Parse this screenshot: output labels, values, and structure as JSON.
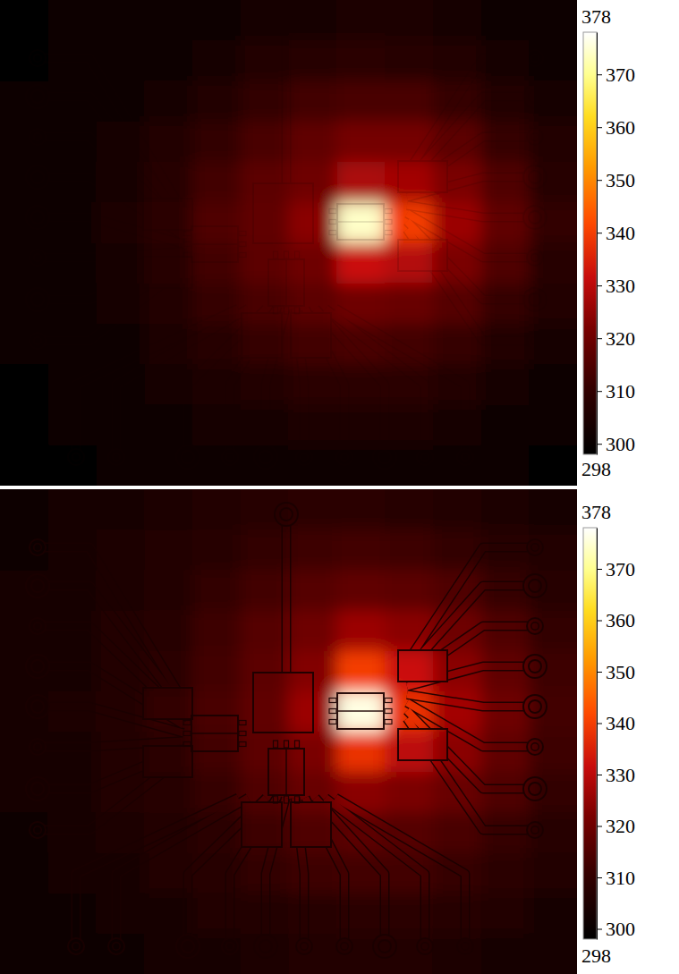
{
  "chart_data": [
    {
      "type": "heatmap",
      "tick_labels": false,
      "cells": [
        [
          299,
          300,
          300,
          301,
          302,
          303,
          304,
          305,
          305,
          304,
          302,
          301
        ],
        [
          299,
          300,
          301,
          302,
          304,
          306,
          308,
          309,
          308,
          306,
          304,
          302
        ],
        [
          300,
          301,
          302,
          304,
          307,
          310,
          313,
          314,
          314,
          311,
          307,
          304
        ],
        [
          300,
          301,
          303,
          306,
          310,
          314,
          318,
          321,
          321,
          317,
          311,
          306
        ],
        [
          300,
          302,
          304,
          308,
          313,
          317,
          320,
          328,
          327,
          322,
          315,
          308
        ],
        [
          300,
          302,
          305,
          309,
          315,
          318,
          324,
          374,
          340,
          326,
          318,
          310
        ],
        [
          300,
          302,
          304,
          308,
          313,
          317,
          320,
          332,
          329,
          322,
          315,
          308
        ],
        [
          300,
          301,
          303,
          306,
          311,
          314,
          317,
          320,
          319,
          316,
          311,
          306
        ],
        [
          300,
          301,
          302,
          305,
          308,
          311,
          313,
          314,
          313,
          311,
          307,
          304
        ],
        [
          299,
          300,
          301,
          303,
          305,
          307,
          309,
          309,
          309,
          307,
          304,
          302
        ],
        [
          299,
          300,
          300,
          301,
          303,
          304,
          305,
          305,
          305,
          304,
          302,
          300
        ],
        [
          299,
          299,
          300,
          300,
          301,
          302,
          302,
          302,
          302,
          301,
          300,
          299
        ]
      ],
      "colorbar": {
        "range": [
          298,
          378
        ],
        "ticks": [
          300,
          310,
          320,
          330,
          340,
          350,
          360,
          370
        ]
      }
    },
    {
      "type": "heatmap",
      "tick_labels": false,
      "cells": [
        [
          302,
          303,
          304,
          305,
          306,
          308,
          309,
          309,
          308,
          307,
          305,
          304
        ],
        [
          302,
          303,
          305,
          306,
          308,
          310,
          312,
          313,
          312,
          310,
          308,
          306
        ],
        [
          303,
          304,
          305,
          307,
          310,
          313,
          316,
          318,
          317,
          315,
          311,
          308
        ],
        [
          303,
          304,
          306,
          308,
          312,
          316,
          320,
          326,
          324,
          320,
          315,
          310
        ],
        [
          303,
          304,
          306,
          309,
          313,
          317,
          323,
          340,
          332,
          324,
          318,
          312
        ],
        [
          303,
          305,
          307,
          310,
          314,
          318,
          326,
          376,
          338,
          327,
          320,
          313
        ],
        [
          303,
          304,
          306,
          309,
          313,
          317,
          322,
          338,
          330,
          324,
          318,
          312
        ],
        [
          303,
          304,
          306,
          308,
          311,
          315,
          319,
          324,
          322,
          319,
          315,
          310
        ],
        [
          302,
          304,
          305,
          307,
          309,
          312,
          315,
          317,
          316,
          314,
          311,
          308
        ],
        [
          302,
          303,
          304,
          306,
          308,
          310,
          312,
          313,
          313,
          311,
          309,
          306
        ],
        [
          302,
          302,
          303,
          304,
          306,
          307,
          308,
          309,
          309,
          308,
          306,
          304
        ],
        [
          301,
          302,
          302,
          303,
          304,
          305,
          306,
          306,
          306,
          305,
          304,
          303
        ]
      ],
      "colorbar": {
        "range": [
          298,
          378
        ],
        "ticks": [
          300,
          310,
          320,
          330,
          340,
          350,
          360,
          370
        ]
      }
    }
  ]
}
